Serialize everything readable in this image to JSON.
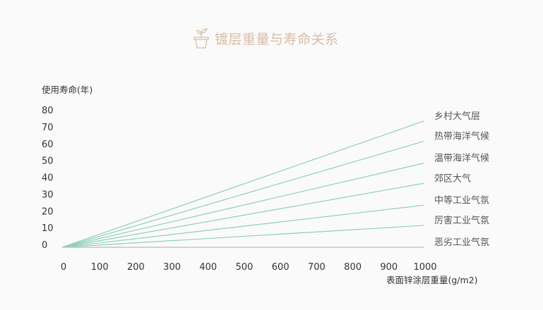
{
  "chart_data": {
    "type": "line",
    "title": "镀层重量与寿命关系",
    "title_icon": "plant-pot-icon",
    "xlabel": "表面锌涂层重量(g/m2)",
    "ylabel": "使用寿命(年)",
    "xlim": [
      0,
      1000
    ],
    "ylim": [
      0,
      80
    ],
    "x_ticks": [
      "0",
      "100",
      "200",
      "300",
      "400",
      "500",
      "600",
      "700",
      "800",
      "900",
      "1000"
    ],
    "y_ticks": [
      "0",
      "10",
      "20",
      "30",
      "40",
      "50",
      "60",
      "70",
      "80"
    ],
    "grid": false,
    "legend": "right, labels at line ends",
    "x": [
      0,
      1000
    ],
    "series": [
      {
        "name": "乡村大气层",
        "values": [
          0,
          75
        ],
        "color": "#8fd0b8"
      },
      {
        "name": "热带海洋气候",
        "values": [
          0,
          63
        ],
        "color": "#8fd0b8"
      },
      {
        "name": "温带海洋气候",
        "values": [
          0,
          50
        ],
        "color": "#8fd0b8"
      },
      {
        "name": "郊区大气",
        "values": [
          0,
          38
        ],
        "color": "#8fd0b8"
      },
      {
        "name": "中等工业气氛",
        "values": [
          0,
          25
        ],
        "color": "#8fd0b8"
      },
      {
        "name": "厉害工业气氛",
        "values": [
          0,
          13
        ],
        "color": "#8fd0b8"
      },
      {
        "name": "恶劣工业气氛",
        "values": [
          0,
          0
        ],
        "color": "#c4c4c4"
      }
    ]
  }
}
